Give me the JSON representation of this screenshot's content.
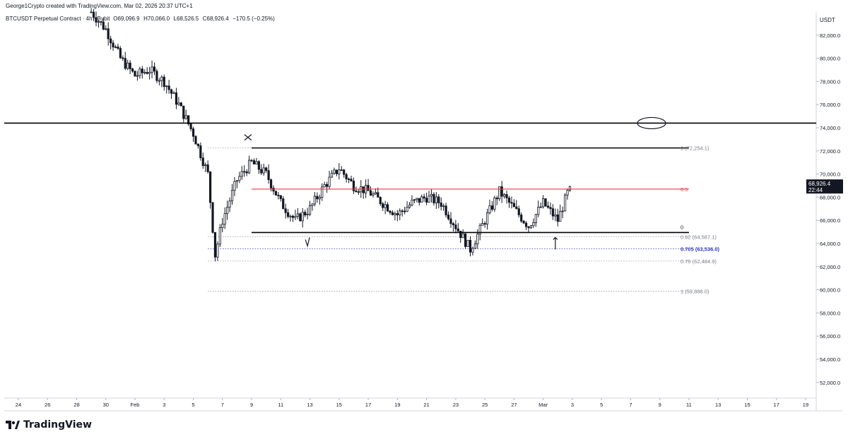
{
  "credit": "George1Crypto created with TradingView.com, Mar 02, 2026 20:37 UTC+1",
  "header_symbol": "BTCUSDT Perpetual Contract · 4h · Bybit",
  "ohlc": {
    "open": "O69,096.9",
    "high": "H70,066.0",
    "low": "L68,526.5",
    "close": "C68,926.4",
    "change": "−170.5 (−0.25%)"
  },
  "axis_currency": "USDT",
  "last_price": {
    "value": "68,926.4",
    "countdown": "22:44",
    "price": 68926.4
  },
  "brand": "TradingView",
  "colors": {
    "up": "#131722",
    "down": "#131722",
    "fib_red": "#f23645",
    "fib_blue": "#3032c8",
    "grid": "#e6e6e6",
    "line": "#000000"
  },
  "chart_data": {
    "type": "candlestick",
    "symbol": "BTCUSDT",
    "interval": "4h",
    "y_axis": {
      "ticks": [
        52000,
        54000,
        56000,
        58000,
        60000,
        62000,
        64000,
        66000,
        68000,
        70000,
        72000,
        74000,
        76000,
        78000,
        80000,
        82000
      ],
      "tick_labels": [
        "52,000.0",
        "54,000.0",
        "56,000.0",
        "58,000.0",
        "60,000.0",
        "62,000.0",
        "64,000.0",
        "66,000.0",
        "68,000.0",
        "70,000.0",
        "72,000.0",
        "74,000.0",
        "76,000.0",
        "78,000.0",
        "80,000.0",
        "82,000.0"
      ],
      "range": [
        50600,
        84200
      ]
    },
    "x_axis": {
      "tick_labels": [
        "24",
        "26",
        "28",
        "30",
        "Feb",
        "3",
        "5",
        "7",
        "9",
        "11",
        "13",
        "15",
        "17",
        "19",
        "21",
        "23",
        "25",
        "27",
        "Mar",
        "3",
        "5",
        "7",
        "9",
        "11",
        "13",
        "15",
        "17",
        "19"
      ],
      "tick_days": [
        -8,
        -6,
        -4,
        -2,
        0,
        2,
        4,
        6,
        8,
        10,
        12,
        14,
        16,
        18,
        20,
        22,
        24,
        26,
        28,
        30,
        32,
        34,
        36,
        38,
        40,
        42,
        44,
        46
      ],
      "start_date": "2026-01-23",
      "end_date": "2026-03-20"
    },
    "price_path": [
      [
        "2026-01-29",
        84000
      ],
      [
        "2026-01-30",
        82500
      ],
      [
        "2026-01-31",
        80000
      ],
      [
        "2026-02-01",
        78500
      ],
      [
        "2026-02-02",
        79000
      ],
      [
        "2026-02-03",
        78000
      ],
      [
        "2026-02-04",
        76000
      ],
      [
        "2026-02-05",
        73500
      ],
      [
        "2026-02-06",
        70000
      ],
      [
        "2026-02-06 12:00",
        63000
      ],
      [
        "2026-02-07",
        66000
      ],
      [
        "2026-02-08",
        69500
      ],
      [
        "2026-02-09",
        71000
      ],
      [
        "2026-02-10",
        70000
      ],
      [
        "2026-02-11",
        67500
      ],
      [
        "2026-02-12",
        66000
      ],
      [
        "2026-02-13",
        67000
      ],
      [
        "2026-02-14",
        69000
      ],
      [
        "2026-02-15",
        70500
      ],
      [
        "2026-02-16",
        69000
      ],
      [
        "2026-02-17",
        68500
      ],
      [
        "2026-02-18",
        67500
      ],
      [
        "2026-02-19",
        66500
      ],
      [
        "2026-02-20",
        67500
      ],
      [
        "2026-02-21",
        68000
      ],
      [
        "2026-02-22",
        67500
      ],
      [
        "2026-02-23",
        65500
      ],
      [
        "2026-02-24",
        63500
      ],
      [
        "2026-02-25",
        66000
      ],
      [
        "2026-02-26",
        68500
      ],
      [
        "2026-02-27",
        67000
      ],
      [
        "2026-02-28",
        65500
      ],
      [
        "2026-03-01",
        67500
      ],
      [
        "2026-03-02",
        66000
      ],
      [
        "2026-03-02 20:00",
        68926.4
      ]
    ],
    "levels": [
      {
        "name": "resistance",
        "price": 74400
      },
      {
        "name": "range-top",
        "price": 72254.1
      },
      {
        "name": "range-mid",
        "price": 68700
      },
      {
        "name": "range-bottom",
        "price": 64950
      }
    ],
    "fib_retracement": [
      {
        "label": "0 (72,254.1)",
        "level": 0,
        "price": 72254.1,
        "color": "#787b86"
      },
      {
        "label": "0.5",
        "level": 0.5,
        "price": 68700,
        "color": "#f23645"
      },
      {
        "label": "0",
        "level": 0,
        "price": 64950,
        "color": "#131722"
      },
      {
        "label": "0.62 (64,587.1)",
        "level": 0.62,
        "price": 64587.1,
        "color": "#787b86"
      },
      {
        "label": "0.705 (63,536.0)",
        "level": 0.705,
        "price": 63536.0,
        "color": "#3032c8"
      },
      {
        "label": "0.79 (62,484.9)",
        "level": 0.79,
        "price": 62484.9,
        "color": "#787b86"
      },
      {
        "label": "1 (59,888.0)",
        "level": 1,
        "price": 59888.0,
        "color": "#787b86"
      }
    ],
    "annotations": [
      "x-mark",
      "check-mark",
      "up-arrow",
      "ellipse"
    ]
  }
}
